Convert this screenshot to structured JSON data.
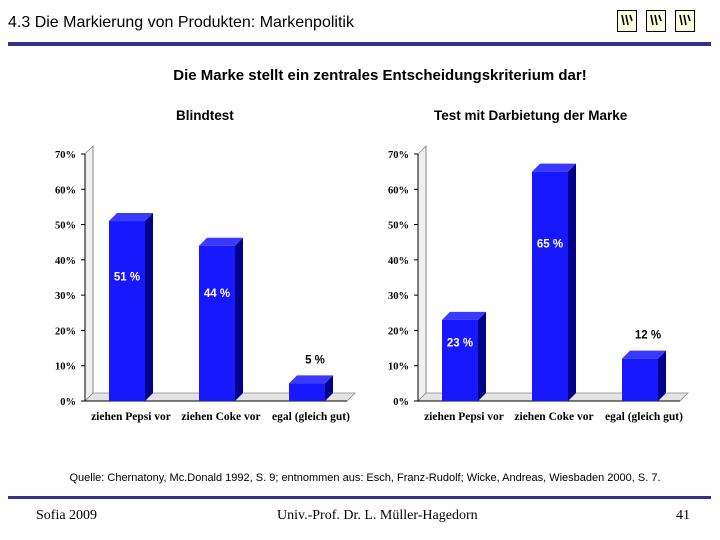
{
  "header": {
    "title": "4.3 Die Markierung von Produkten: Markenpolitik"
  },
  "subtitle": "Die Marke stellt ein zentrales Entscheidungskriterium dar!",
  "colors": {
    "bar": "#1818ff",
    "bar_top": "#3a3aff",
    "bar_side": "#00008a",
    "rule": "#33338c"
  },
  "chart_data": [
    {
      "type": "bar",
      "title": "Blindtest",
      "categories": [
        "ziehen Pepsi vor",
        "ziehen Coke vor",
        "egal (gleich gut)"
      ],
      "values": [
        51,
        44,
        5
      ],
      "data_labels": [
        "51 %",
        "44 %",
        "5 %"
      ],
      "ylim": [
        0,
        70
      ],
      "yticks": [
        "0%",
        "10%",
        "20%",
        "30%",
        "40%",
        "50%",
        "60%",
        "70%"
      ],
      "ylabel": "",
      "xlabel": ""
    },
    {
      "type": "bar",
      "title": "Test mit Darbietung der Marke",
      "categories": [
        "ziehen Pepsi vor",
        "ziehen Coke vor",
        "egal (gleich gut)"
      ],
      "values": [
        23,
        65,
        12
      ],
      "data_labels": [
        "23 %",
        "65 %",
        "12 %"
      ],
      "ylim": [
        0,
        70
      ],
      "yticks": [
        "0%",
        "10%",
        "20%",
        "30%",
        "40%",
        "50%",
        "60%",
        "70%"
      ],
      "ylabel": "",
      "xlabel": ""
    }
  ],
  "source": "Quelle: Chernatony, Mc.Donald 1992, S. 9; entnommen aus: Esch, Franz-Rudolf; Wicke, Andreas, Wiesbaden 2000, S. 7.",
  "footer": {
    "left": "Sofia 2009",
    "center": "Univ.-Prof. Dr. L. Müller-Hagedorn",
    "page": "41"
  }
}
